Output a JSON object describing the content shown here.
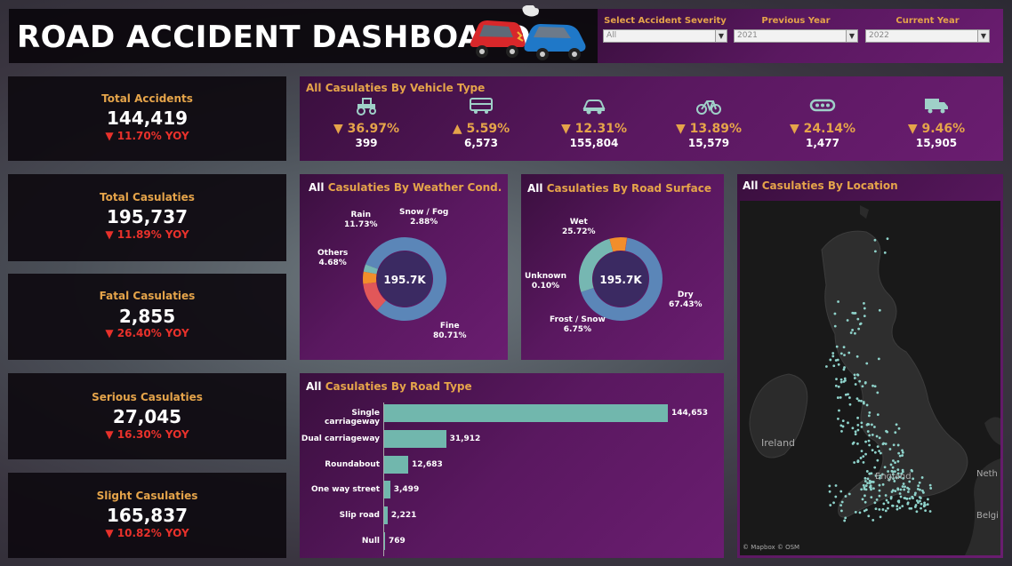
{
  "header": {
    "title": "ROAD ACCIDENT DASHBOARD",
    "filters": [
      {
        "label": "Select Accident Severity",
        "value": "All"
      },
      {
        "label": "Previous Year",
        "value": "2021"
      },
      {
        "label": "Current Year",
        "value": "2022"
      }
    ]
  },
  "kpis": [
    {
      "title": "Total Accidents",
      "value": "144,419",
      "yoy": "▼ 11.70% YOY"
    },
    {
      "title": "Total Casulaties",
      "value": "195,737",
      "yoy": "▼ 11.89% YOY"
    },
    {
      "title": "Fatal Casulaties",
      "value": "2,855",
      "yoy": "▼ 26.40% YOY"
    },
    {
      "title": "Serious Casulaties",
      "value": "27,045",
      "yoy": "▼ 16.30% YOY"
    },
    {
      "title": "Slight Casulaties",
      "value": "165,837",
      "yoy": "▼ 10.82% YOY"
    }
  ],
  "vehicle": {
    "title_all": "All",
    "title_rest": "Casulaties By Vehicle Type",
    "items": [
      {
        "icon": "tractor-icon",
        "pct": "▼ 36.97%",
        "count": "399"
      },
      {
        "icon": "bus-icon",
        "pct": "▲ 5.59%",
        "count": "6,573"
      },
      {
        "icon": "car-icon",
        "pct": "▼ 12.31%",
        "count": "155,804"
      },
      {
        "icon": "bicycle-icon",
        "pct": "▼ 13.89%",
        "count": "15,579"
      },
      {
        "icon": "other-vehicle-icon",
        "pct": "▼ 24.14%",
        "count": "1,477"
      },
      {
        "icon": "truck-icon",
        "pct": "▼ 9.46%",
        "count": "15,905"
      }
    ]
  },
  "weather": {
    "title_all": "All",
    "title_rest": "Casulaties By Weather Cond.",
    "center": "195.7K",
    "labels": {
      "rain": "Rain\n11.73%",
      "snow": "Snow / Fog\n2.88%",
      "others": "Others\n4.68%",
      "fine": "Fine\n80.71%"
    }
  },
  "surface": {
    "title_all": "All",
    "title_rest": "Casulaties By Road Surface",
    "center": "195.7K",
    "labels": {
      "wet": "Wet\n25.72%",
      "unknown": "Unknown\n0.10%",
      "frost": "Frost / Snow\n6.75%",
      "dry": "Dry\n67.43%"
    }
  },
  "location": {
    "title_all": "All",
    "title_rest": "Casulaties By Location",
    "labels": {
      "ireland": "Ireland",
      "england": "England",
      "neth": "Neth",
      "belg": "Belgi"
    },
    "attribution": "© Mapbox © OSM"
  },
  "chart_data": [
    {
      "type": "pie",
      "categories": [
        "Fine",
        "Rain",
        "Others",
        "Snow / Fog"
      ],
      "values": [
        80.71,
        11.73,
        4.68,
        2.88
      ],
      "colors": [
        "#5b86b8",
        "#e15759",
        "#f28e2b",
        "#76b7b2"
      ]
    },
    {
      "type": "pie",
      "categories": [
        "Dry",
        "Wet",
        "Frost / Snow",
        "Unknown"
      ],
      "values": [
        67.43,
        25.72,
        6.75,
        0.1
      ],
      "colors": [
        "#5b86b8",
        "#76b7b2",
        "#f28e2b",
        "#e15759"
      ]
    },
    {
      "type": "bar",
      "title": "Casulaties By Road Type",
      "categories": [
        "Single carriageway",
        "Dual carriageway",
        "Roundabout",
        "One way street",
        "Slip road",
        "Null"
      ],
      "values": [
        144653,
        31912,
        12683,
        3499,
        2221,
        769
      ],
      "value_labels": [
        "144,653",
        "31,912",
        "12,683",
        "3,499",
        "2,221",
        "769"
      ]
    }
  ]
}
